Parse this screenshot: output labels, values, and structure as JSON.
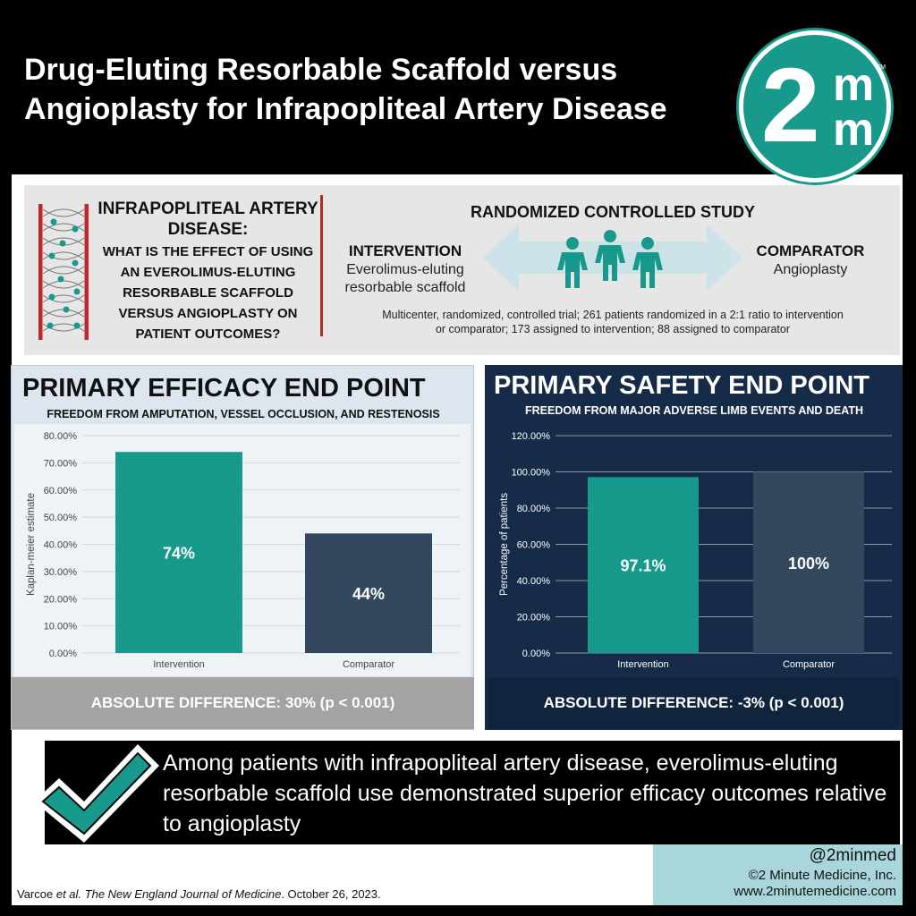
{
  "header": {
    "title": "Drug-Eluting Resorbable Scaffold versus Angioplasty for Infrapopliteal Artery Disease",
    "logo_text_2": "2",
    "logo_text_m": "m",
    "logo_tm": "TM"
  },
  "question": {
    "heading": "INFRAPOPLITEAL ARTERY DISEASE:",
    "body": "WHAT IS THE EFFECT OF USING AN EVEROLIMUS-ELUTING RESORBABLE SCAFFOLD VERSUS ANGIOPLASTY ON PATIENT OUTCOMES?"
  },
  "study": {
    "title": "RANDOMIZED CONTROLLED STUDY",
    "intervention_label": "INTERVENTION",
    "intervention_desc": "Everolimus-eluting resorbable scaffold",
    "comparator_label": "COMPARATOR",
    "comparator_desc": "Angioplasty",
    "description": "Multicenter, randomized, controlled trial; 261 patients randomized in a 2:1 ratio to intervention or comparator; 173 assigned to intervention; 88 assigned to comparator"
  },
  "efficacy": {
    "title": "PRIMARY EFFICACY END POINT",
    "subtitle": "FREEDOM FROM AMPUTATION, VESSEL OCCLUSION, AND RESTENOSIS",
    "difference": "ABSOLUTE DIFFERENCE: 30% (p < 0.001)"
  },
  "safety": {
    "title": "PRIMARY SAFETY END POINT",
    "subtitle": "FREEDOM FROM MAJOR ADVERSE LIMB EVENTS AND DEATH",
    "difference": "ABSOLUTE DIFFERENCE: -3% (p < 0.001)"
  },
  "conclusion": {
    "text": "Among patients with infrapopliteal artery disease, everolimus-eluting resorbable scaffold use demonstrated superior efficacy outcomes relative to angioplasty"
  },
  "footer": {
    "handle": "@2minmed",
    "copyright": "©2 Minute Medicine, Inc.",
    "website": "www.2minutemedicine.com",
    "citation_authors": "Varcoe ",
    "citation_etal": "et al.",
    "citation_journal": " The New England Journal of Medicine",
    "citation_date": ". October 26, 2023."
  },
  "colors": {
    "teal": "#179a8c",
    "navy_bar": "#33475f",
    "safety_bg": "#152b48",
    "accent_red": "#b22a2a"
  },
  "chart_data": [
    {
      "type": "bar",
      "categories": [
        "Intervention",
        "Comparator"
      ],
      "values": [
        74,
        44
      ],
      "data_labels": [
        "74%",
        "44%"
      ],
      "ylabel": "Kaplan-meier estimate",
      "ylim": [
        0,
        80
      ],
      "yticks": [
        "0.00%",
        "10.00%",
        "20.00%",
        "30.00%",
        "40.00%",
        "50.00%",
        "60.00%",
        "70.00%",
        "80.00%"
      ],
      "grid": true,
      "bar_colors": [
        "#179a8c",
        "#33475f"
      ]
    },
    {
      "type": "bar",
      "categories": [
        "Intervention",
        "Comparator"
      ],
      "values": [
        97.1,
        100
      ],
      "data_labels": [
        "97.1%",
        "100%"
      ],
      "ylabel": "Percentage of patients",
      "ylim": [
        0,
        120
      ],
      "yticks": [
        "0.00%",
        "20.00%",
        "40.00%",
        "60.00%",
        "80.00%",
        "100.00%",
        "120.00%"
      ],
      "grid": true,
      "bar_colors": [
        "#179a8c",
        "#33475f"
      ]
    }
  ]
}
